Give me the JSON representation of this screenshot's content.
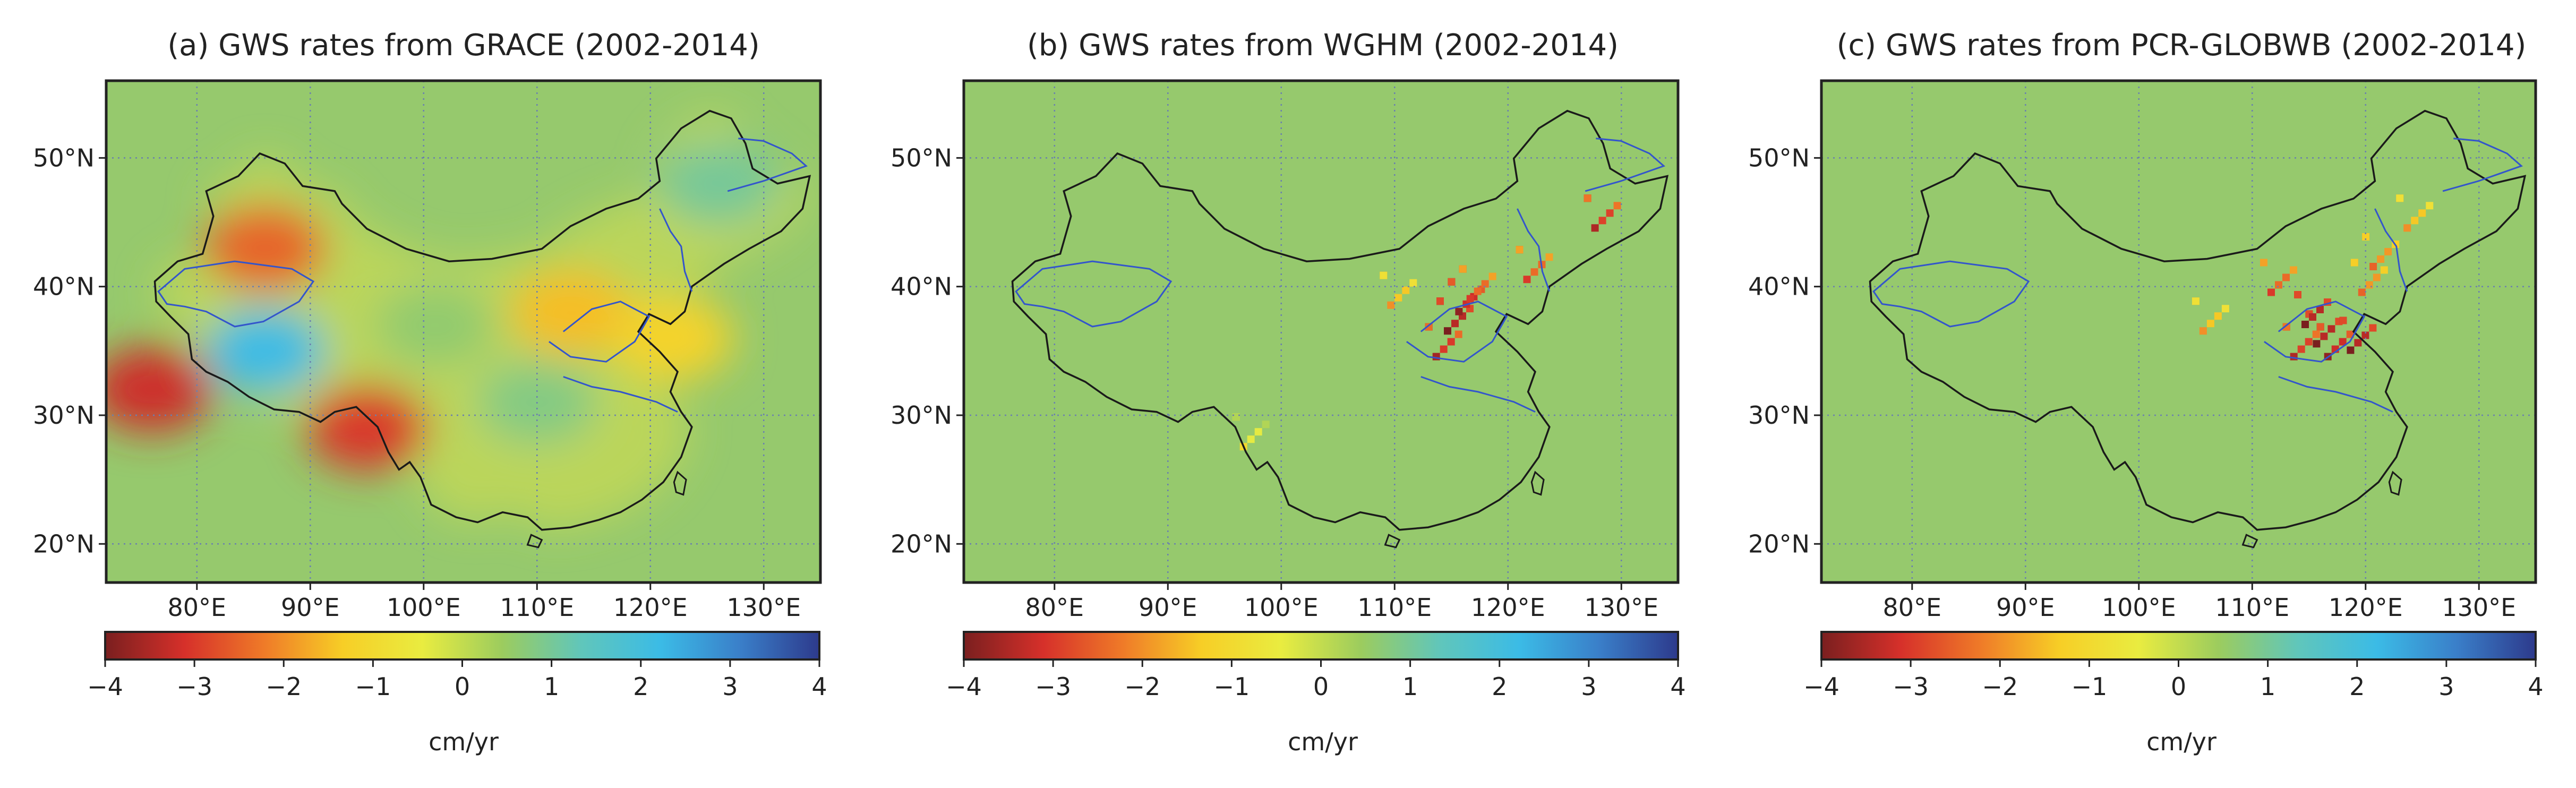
{
  "colors": {
    "background_land": "#96c96d",
    "country_outline": "#1a1a1a",
    "river_outline": "#3355cc",
    "gridline": "#6a7fb0",
    "frame": "#222222"
  },
  "colormap": [
    "#7a1f1f",
    "#d6302a",
    "#ef7a28",
    "#f7ce26",
    "#e9ec40",
    "#9ccc5e",
    "#60c6bb",
    "#3bbbe6",
    "#3a7fc9",
    "#2d3a8c"
  ],
  "panels": [
    {
      "title": "(a) GWS rates from GRACE (2002-2014)",
      "source": "GRACE",
      "x_ticks": [
        "80°E",
        "90°E",
        "100°E",
        "110°E",
        "120°E",
        "130°E"
      ],
      "y_ticks": [
        "50°N",
        "40°N",
        "30°N",
        "20°N"
      ],
      "colorbar_ticks": [
        "−4",
        "−3",
        "−2",
        "−1",
        "0",
        "1",
        "2",
        "3",
        "4"
      ],
      "colorbar_label": "cm/yr",
      "colorbar_range": [
        -4,
        4
      ]
    },
    {
      "title": "(b) GWS rates from WGHM (2002-2014)",
      "source": "WGHM",
      "x_ticks": [
        "80°E",
        "90°E",
        "100°E",
        "110°E",
        "120°E",
        "130°E"
      ],
      "y_ticks": [
        "50°N",
        "40°N",
        "30°N",
        "20°N"
      ],
      "colorbar_ticks": [
        "−4",
        "−3",
        "−2",
        "−1",
        "0",
        "1",
        "2",
        "3",
        "4"
      ],
      "colorbar_label": "cm/yr",
      "colorbar_range": [
        -4,
        4
      ]
    },
    {
      "title": "(c) GWS rates from PCR-GLOBWB (2002-2014)",
      "source": "PCR-GLOBWB",
      "x_ticks": [
        "80°E",
        "90°E",
        "100°E",
        "110°E",
        "120°E",
        "130°E"
      ],
      "y_ticks": [
        "50°N",
        "40°N",
        "30°N",
        "20°N"
      ],
      "colorbar_ticks": [
        "−4",
        "−3",
        "−2",
        "−1",
        "0",
        "1",
        "2",
        "3",
        "4"
      ],
      "colorbar_label": "cm/yr",
      "colorbar_range": [
        -4,
        4
      ]
    }
  ],
  "chart_data": [
    {
      "type": "heatmap",
      "title": "(a) GWS rates from GRACE (2002-2014)",
      "units": "cm/yr",
      "xlim": [
        72,
        135
      ],
      "ylim": [
        17,
        56
      ],
      "anomalies": [
        {
          "lon": 86,
          "lat": 43,
          "value": -2.5
        },
        {
          "lon": 76,
          "lat": 32,
          "value": -3.2
        },
        {
          "lon": 95,
          "lat": 29,
          "value": -3.0
        },
        {
          "lon": 86,
          "lat": 35,
          "value": 2.2
        },
        {
          "lon": 113,
          "lat": 38,
          "value": -1.5
        },
        {
          "lon": 122,
          "lat": 36,
          "value": -1.2
        },
        {
          "lon": 126,
          "lat": 48,
          "value": 1.0
        },
        {
          "lon": 110,
          "lat": 31,
          "value": 0.8
        },
        {
          "lon": 101,
          "lat": 37,
          "value": 0.6
        }
      ]
    },
    {
      "type": "heatmap",
      "title": "(b) GWS rates from WGHM (2002-2014)",
      "units": "cm/yr",
      "xlim": [
        72,
        135
      ],
      "ylim": [
        17,
        56
      ],
      "anomalies": [
        {
          "lon": 115,
          "lat": 38,
          "value": -4.0
        },
        {
          "lon": 116,
          "lat": 39.5,
          "value": -3.8
        },
        {
          "lon": 114,
          "lat": 36,
          "value": -3.6
        },
        {
          "lon": 117,
          "lat": 40.5,
          "value": -3.0
        },
        {
          "lon": 122,
          "lat": 42,
          "value": -3.0
        },
        {
          "lon": 110,
          "lat": 40,
          "value": -2.0
        },
        {
          "lon": 128,
          "lat": 46,
          "value": -3.5
        },
        {
          "lon": 97,
          "lat": 29,
          "value": -1.0
        }
      ]
    },
    {
      "type": "heatmap",
      "title": "(c) GWS rates from PCR-GLOBWB (2002-2014)",
      "units": "cm/yr",
      "xlim": [
        72,
        135
      ],
      "ylim": [
        17,
        56
      ],
      "anomalies": [
        {
          "lon": 116,
          "lat": 37,
          "value": -4.0
        },
        {
          "lon": 115,
          "lat": 38.5,
          "value": -4.0
        },
        {
          "lon": 117,
          "lat": 36,
          "value": -3.8
        },
        {
          "lon": 119,
          "lat": 36.5,
          "value": -4.0
        },
        {
          "lon": 114,
          "lat": 36,
          "value": -3.5
        },
        {
          "lon": 121,
          "lat": 43,
          "value": -2.5
        },
        {
          "lon": 124,
          "lat": 46,
          "value": -2.0
        },
        {
          "lon": 112,
          "lat": 41,
          "value": -3.0
        },
        {
          "lon": 106,
          "lat": 38,
          "value": -2.0
        },
        {
          "lon": 120,
          "lat": 41,
          "value": -2.5
        }
      ]
    }
  ]
}
